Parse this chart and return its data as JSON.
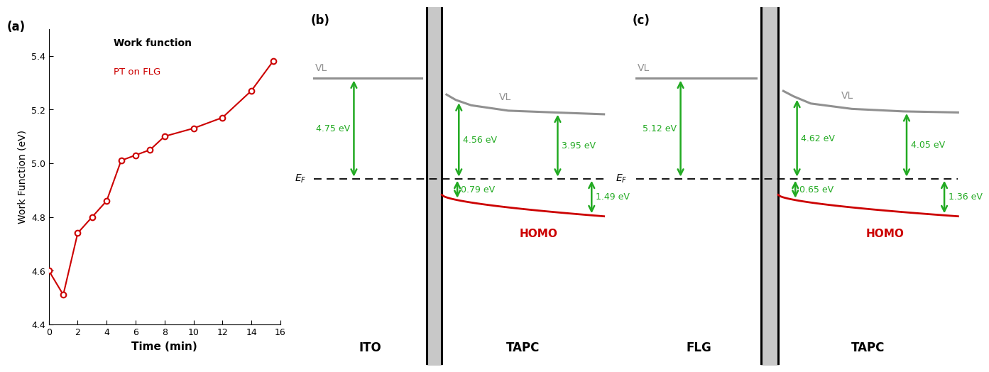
{
  "panel_a": {
    "x": [
      0,
      1,
      2,
      3,
      4,
      5,
      6,
      7,
      8,
      10,
      12,
      14,
      15.5
    ],
    "y": [
      4.6,
      4.51,
      4.74,
      4.8,
      4.86,
      5.01,
      5.03,
      5.05,
      5.1,
      5.13,
      5.17,
      5.27,
      5.38
    ],
    "xlabel": "Time (min)",
    "ylabel": "Work Function (eV)",
    "title": "Work function",
    "legend": "PT on FLG",
    "xlim": [
      0,
      16
    ],
    "ylim": [
      4.4,
      5.5
    ],
    "xticks": [
      0,
      2,
      4,
      6,
      8,
      10,
      12,
      14,
      16
    ],
    "yticks": [
      4.4,
      4.6,
      4.8,
      5.0,
      5.2,
      5.4
    ],
    "line_color": "#cc0000",
    "legend_color": "#cc0000"
  },
  "panel_b": {
    "label": "(b)",
    "left_label": "ITO",
    "right_label": "TAPC",
    "homo_label": "HOMO",
    "arrow1_label": "4.75 eV",
    "arrow2_label": "4.56 eV",
    "arrow3_label": "3.95 eV",
    "arrow4_label": "0.79 eV",
    "arrow5_label": "1.49 eV"
  },
  "panel_c": {
    "label": "(c)",
    "left_label": "FLG",
    "right_label": "TAPC",
    "homo_label": "HOMO",
    "arrow1_label": "5.12 eV",
    "arrow2_label": "4.62 eV",
    "arrow3_label": "4.05 eV",
    "arrow4_label": "0.65 eV",
    "arrow5_label": "1.36 eV"
  },
  "colors": {
    "green": "#22aa22",
    "red": "#cc0000",
    "gray_vl": "#909090",
    "black": "#111111"
  }
}
